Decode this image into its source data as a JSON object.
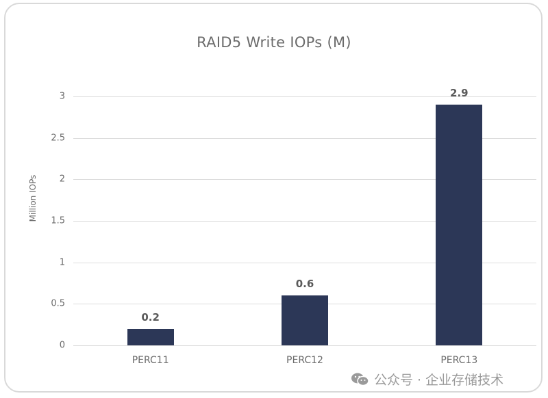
{
  "chart_data": {
    "type": "bar",
    "title": "RAID5 Write IOPs (M)",
    "xlabel": "",
    "ylabel": "Million IOPs",
    "categories": [
      "PERC11",
      "PERC12",
      "PERC13"
    ],
    "values": [
      0.2,
      0.6,
      2.9
    ],
    "data_labels": [
      "0.2",
      "0.6",
      "2.9"
    ],
    "ylim": [
      0,
      3
    ],
    "yticks": [
      "0",
      "0.5",
      "1",
      "1.5",
      "2",
      "2.5",
      "3"
    ],
    "grid": true,
    "legend": "none",
    "bar_color": "#2c3757"
  },
  "watermark": {
    "icon": "wechat-icon",
    "text": "公众号 · 企业存储技术"
  }
}
